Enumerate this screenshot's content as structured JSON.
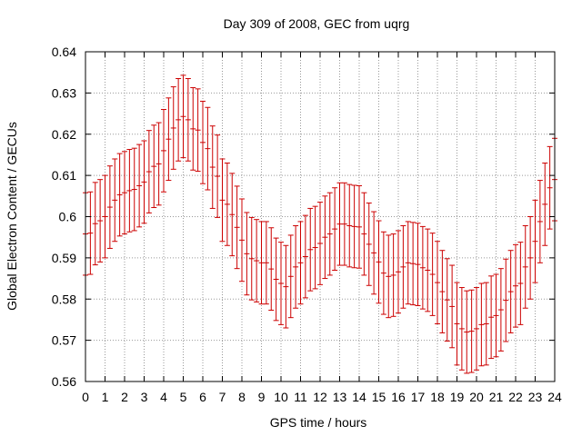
{
  "chart_data": {
    "type": "scatter",
    "title": "Day 309 of 2008, GEC from uqrg",
    "xlabel": "GPS time / hours",
    "ylabel": "Global Electron Content / GECUs",
    "xlim": [
      0,
      24
    ],
    "ylim": [
      0.56,
      0.64
    ],
    "xticks": [
      0,
      1,
      2,
      3,
      4,
      5,
      6,
      7,
      8,
      9,
      10,
      11,
      12,
      13,
      14,
      15,
      16,
      17,
      18,
      19,
      20,
      21,
      22,
      23,
      24
    ],
    "yticks": [
      0.56,
      0.57,
      0.58,
      0.59,
      0.6,
      0.61,
      0.62,
      0.63,
      0.64
    ],
    "ytick_labels": [
      "0.56",
      "0.57",
      "0.58",
      "0.59",
      "0.6",
      "0.61",
      "0.62",
      "0.63",
      "0.64"
    ],
    "grid": true,
    "colors": {
      "errorbars": "#cc0000",
      "grid": "#999999",
      "frame": "#000000"
    },
    "series": [
      {
        "error": 0.01,
        "points": [
          [
            0.0,
            0.5958
          ],
          [
            0.25,
            0.596
          ],
          [
            0.5,
            0.5983
          ],
          [
            0.75,
            0.599
          ],
          [
            1.0,
            0.6
          ],
          [
            1.25,
            0.6023
          ],
          [
            1.5,
            0.604
          ],
          [
            1.75,
            0.6053
          ],
          [
            2.0,
            0.6058
          ],
          [
            2.25,
            0.6063
          ],
          [
            2.5,
            0.6066
          ],
          [
            2.75,
            0.6075
          ],
          [
            3.0,
            0.6084
          ],
          [
            3.25,
            0.6109
          ],
          [
            3.5,
            0.6122
          ],
          [
            3.75,
            0.6128
          ],
          [
            4.0,
            0.616
          ],
          [
            4.25,
            0.6188
          ],
          [
            4.5,
            0.6215
          ],
          [
            4.75,
            0.6235
          ],
          [
            5.0,
            0.6243
          ],
          [
            5.25,
            0.6235
          ],
          [
            5.5,
            0.6213
          ],
          [
            5.75,
            0.621
          ],
          [
            6.0,
            0.618
          ],
          [
            6.25,
            0.6165
          ],
          [
            6.5,
            0.612
          ],
          [
            6.75,
            0.6098
          ],
          [
            7.0,
            0.604
          ],
          [
            7.25,
            0.603
          ],
          [
            7.5,
            0.6005
          ],
          [
            7.75,
            0.5974
          ],
          [
            8.0,
            0.5943
          ],
          [
            8.25,
            0.591
          ],
          [
            8.5,
            0.5898
          ],
          [
            8.75,
            0.5893
          ],
          [
            9.0,
            0.5888
          ],
          [
            9.25,
            0.5888
          ],
          [
            9.5,
            0.5873
          ],
          [
            9.75,
            0.5848
          ],
          [
            10.0,
            0.5838
          ],
          [
            10.25,
            0.583
          ],
          [
            10.5,
            0.5855
          ],
          [
            10.75,
            0.5878
          ],
          [
            11.0,
            0.5888
          ],
          [
            11.25,
            0.5903
          ],
          [
            11.5,
            0.592
          ],
          [
            11.75,
            0.5925
          ],
          [
            12.0,
            0.5935
          ],
          [
            12.25,
            0.595
          ],
          [
            12.5,
            0.5958
          ],
          [
            12.75,
            0.597
          ],
          [
            13.0,
            0.5982
          ],
          [
            13.25,
            0.5982
          ],
          [
            13.5,
            0.5978
          ],
          [
            13.75,
            0.5976
          ],
          [
            14.0,
            0.5975
          ],
          [
            14.25,
            0.5958
          ],
          [
            14.5,
            0.5933
          ],
          [
            14.75,
            0.5912
          ],
          [
            15.0,
            0.589
          ],
          [
            15.25,
            0.5863
          ],
          [
            15.5,
            0.5855
          ],
          [
            15.75,
            0.5858
          ],
          [
            16.0,
            0.5866
          ],
          [
            16.25,
            0.5878
          ],
          [
            16.5,
            0.5888
          ],
          [
            16.75,
            0.5886
          ],
          [
            17.0,
            0.5884
          ],
          [
            17.25,
            0.5876
          ],
          [
            17.5,
            0.587
          ],
          [
            17.75,
            0.586
          ],
          [
            18.0,
            0.584
          ],
          [
            18.25,
            0.5818
          ],
          [
            18.5,
            0.5798
          ],
          [
            18.75,
            0.5782
          ],
          [
            19.0,
            0.574
          ],
          [
            19.25,
            0.5728
          ],
          [
            19.5,
            0.572
          ],
          [
            19.75,
            0.5722
          ],
          [
            20.0,
            0.5728
          ],
          [
            20.25,
            0.5738
          ],
          [
            20.5,
            0.574
          ],
          [
            20.75,
            0.5756
          ],
          [
            21.0,
            0.576
          ],
          [
            21.25,
            0.5774
          ],
          [
            21.5,
            0.5797
          ],
          [
            21.75,
            0.5818
          ],
          [
            22.0,
            0.5832
          ],
          [
            22.25,
            0.5838
          ],
          [
            22.5,
            0.5878
          ],
          [
            22.75,
            0.59
          ],
          [
            23.0,
            0.594
          ],
          [
            23.25,
            0.5988
          ],
          [
            23.5,
            0.603
          ],
          [
            23.75,
            0.607
          ],
          [
            24.0,
            0.609
          ]
        ]
      }
    ]
  }
}
